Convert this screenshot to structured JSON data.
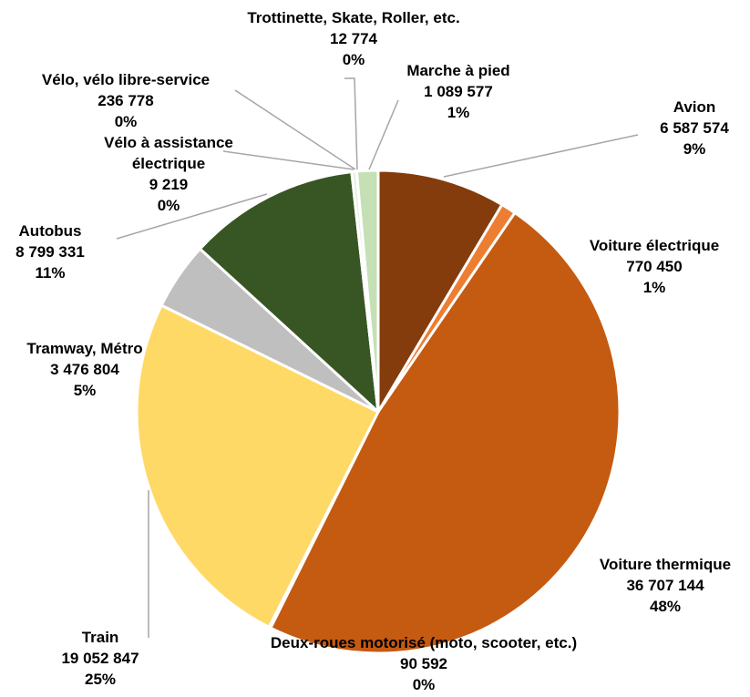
{
  "chart_data": {
    "type": "pie",
    "categories": [
      "Avion",
      "Voiture électrique",
      "Voiture thermique",
      "Deux-roues motorisé (moto, scooter, etc.)",
      "Train",
      "Tramway, Métro",
      "Autobus",
      "Vélo à assistance électrique",
      "Vélo, vélo libre-service",
      "Trottinette, Skate, Roller, etc.",
      "Marche à pied"
    ],
    "values": [
      6587574,
      770450,
      36707144,
      90592,
      19052847,
      3476804,
      8799331,
      9219,
      236778,
      12774,
      1089577
    ],
    "value_labels": [
      "6 587 574",
      "770 450",
      "36 707 144",
      "90 592",
      "19 052 847",
      "3 476 804",
      "8 799 331",
      "9 219",
      "236 778",
      "12 774",
      "1 089 577"
    ],
    "percents": [
      9,
      1,
      48,
      0,
      25,
      5,
      11,
      0,
      0,
      0,
      1
    ],
    "percent_labels": [
      "9%",
      "1%",
      "48%",
      "0%",
      "25%",
      "5%",
      "11%",
      "0%",
      "0%",
      "0%",
      "1%"
    ],
    "colors": [
      "#843c0c",
      "#ed7d31",
      "#c55a11",
      "#f4b183",
      "#ffd966",
      "#bfbfbf",
      "#375623",
      "#a9d18e",
      "#e2efda",
      "#70ad47",
      "#c5e0b4"
    ]
  }
}
